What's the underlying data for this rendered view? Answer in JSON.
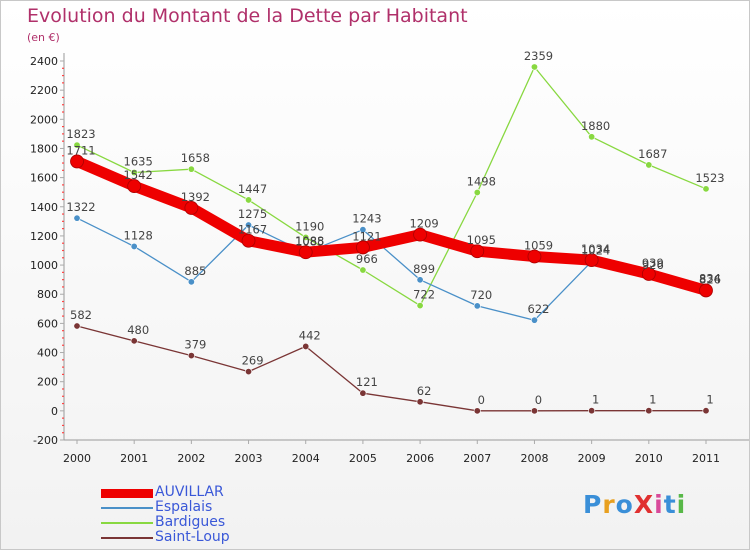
{
  "title": "Evolution du Montant de la Dette par Habitant",
  "subtitle": "(en €)",
  "logo": {
    "text": "ProXiti",
    "colors": [
      "#3a8fd8",
      "#e8a020",
      "#3a8fd8",
      "#e03030",
      "#d84a9a",
      "#3a8fd8",
      "#58b848"
    ]
  },
  "chart_data": {
    "type": "line",
    "x": [
      "2000",
      "2001",
      "2002",
      "2003",
      "2004",
      "2005",
      "2006",
      "2007",
      "2008",
      "2009",
      "2010",
      "2011"
    ],
    "yticks": [
      "-200",
      "0",
      "200",
      "400",
      "600",
      "800",
      "1000",
      "1200",
      "1400",
      "1600",
      "1800",
      "2000",
      "2200",
      "2400"
    ],
    "ylim": [
      -200,
      2400
    ],
    "grid": false,
    "legend_position": "bottom-left",
    "series": [
      {
        "name": "AUVILLAR",
        "color": "#ee0000",
        "values": [
          1711,
          1542,
          1392,
          1167,
          1088,
          1121,
          1209,
          1095,
          1059,
          1034,
          939,
          826
        ],
        "labels": [
          "1711",
          "1542",
          "1392",
          "1167",
          "1088",
          "1121",
          "1209",
          "1095",
          "1059",
          "1034",
          "939",
          "826"
        ]
      },
      {
        "name": "Espalais",
        "color": "#4a90c8",
        "values": [
          1322,
          1128,
          885,
          1275,
          1085,
          1243,
          899,
          720,
          622,
          1024,
          926,
          834
        ],
        "labels": [
          "1322",
          "1128",
          "885",
          "1275",
          "1085",
          "1243",
          "899",
          "720",
          "622",
          "1024",
          "926",
          "834"
        ]
      },
      {
        "name": "Bardigues",
        "color": "#88d840",
        "values": [
          1823,
          1635,
          1658,
          1447,
          1190,
          966,
          722,
          1498,
          2359,
          1880,
          1687,
          1523
        ],
        "labels": [
          "1823",
          "1635",
          "1658",
          "1447",
          "1190",
          "966",
          "722",
          "1498",
          "2359",
          "1880",
          "1687",
          "1523"
        ]
      },
      {
        "name": "Saint-Loup",
        "color": "#7a3535",
        "values": [
          582,
          480,
          379,
          269,
          442,
          121,
          62,
          0,
          0,
          1,
          1,
          1
        ],
        "labels": [
          "582",
          "480",
          "379",
          "269",
          "442",
          "121",
          "62",
          "0",
          "0",
          "1",
          "1",
          "1"
        ]
      }
    ]
  }
}
